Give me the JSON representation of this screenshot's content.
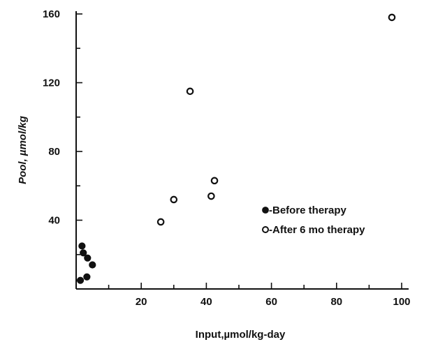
{
  "chart_data": {
    "type": "scatter",
    "title": "",
    "xlabel": "Input,µmol/kg-day",
    "ylabel": "Pool, µmol/kg",
    "xlim": [
      0,
      100
    ],
    "ylim": [
      0,
      160
    ],
    "x_ticks": [
      {
        "value": 20,
        "label": "20"
      },
      {
        "value": 40,
        "label": "40"
      },
      {
        "value": 60,
        "label": "60"
      },
      {
        "value": 80,
        "label": "80"
      },
      {
        "value": 100,
        "label": "100"
      }
    ],
    "y_ticks": [
      {
        "value": 40,
        "label": "40"
      },
      {
        "value": 80,
        "label": "80"
      },
      {
        "value": 120,
        "label": "120"
      },
      {
        "value": 160,
        "label": "160"
      }
    ],
    "grid": false,
    "legend_position": "center-right",
    "series": [
      {
        "name": "-Before therapy",
        "marker": "filled-circle",
        "points": [
          {
            "x": 1.8,
            "y": 25
          },
          {
            "x": 2.2,
            "y": 21
          },
          {
            "x": 3.5,
            "y": 18
          },
          {
            "x": 5.0,
            "y": 14
          },
          {
            "x": 3.3,
            "y": 7
          },
          {
            "x": 1.3,
            "y": 5
          }
        ]
      },
      {
        "name": "-After 6 mo therapy",
        "marker": "open-circle",
        "points": [
          {
            "x": 26,
            "y": 39
          },
          {
            "x": 30,
            "y": 52
          },
          {
            "x": 35,
            "y": 115
          },
          {
            "x": 41.5,
            "y": 54
          },
          {
            "x": 42.5,
            "y": 63
          },
          {
            "x": 97,
            "y": 158
          }
        ]
      }
    ]
  }
}
